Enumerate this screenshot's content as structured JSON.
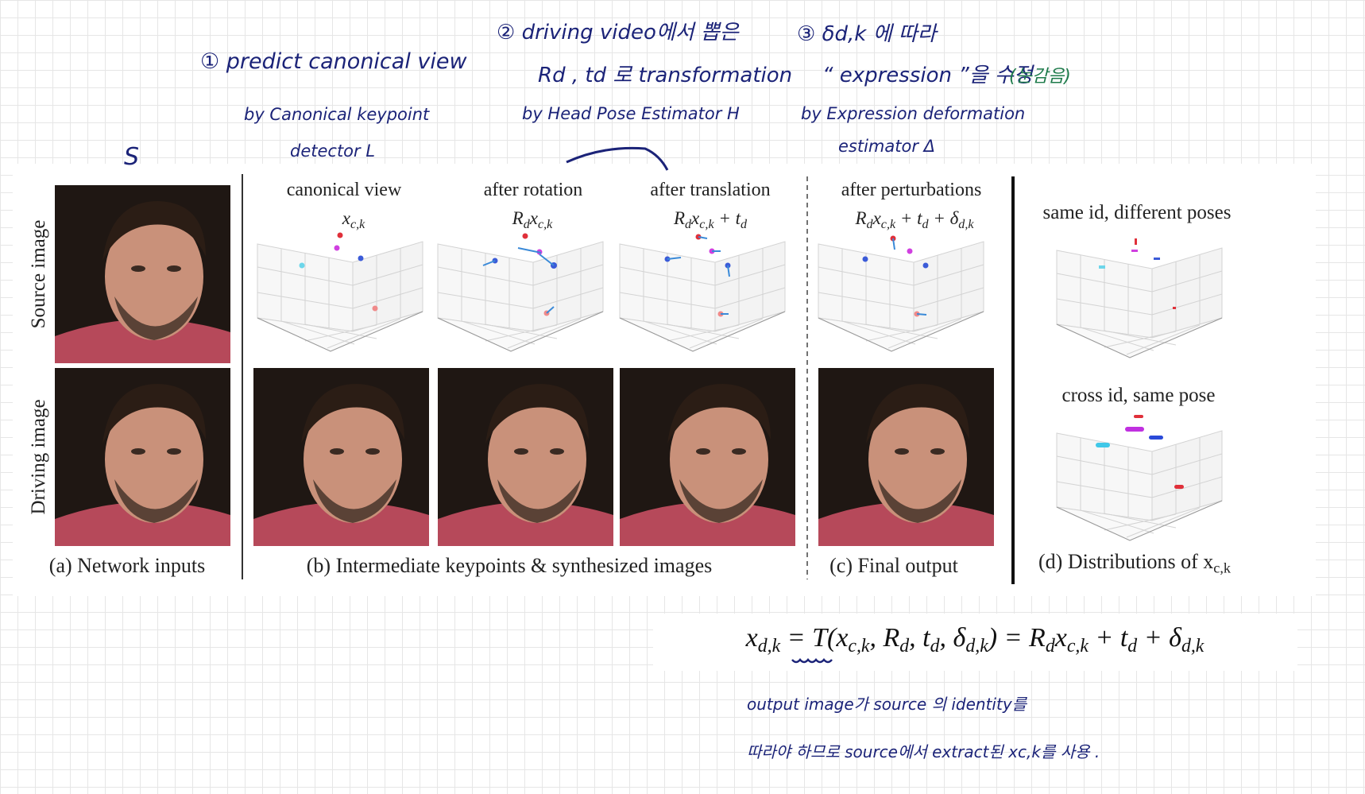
{
  "annotations": {
    "source_mark": "S",
    "step1": {
      "title": "① predict canonical view",
      "by": [
        "by Canonical keypoint",
        "detector L"
      ]
    },
    "step2": {
      "title": "② driving video에서 뽑은",
      "line2": "Rd , td 로 transformation",
      "by": [
        "by Head Pose Estimator H"
      ]
    },
    "step3": {
      "title": "③ δd,k 에 따라",
      "line2": "“ expression ”을 수정",
      "note": "(눈감음)",
      "by": [
        "by Expression deformation",
        "estimator Δ"
      ]
    },
    "bottom_note": [
      "output image가 source 의 identity를",
      "따라야 하므로 source에서 extract된 xc,k를 사용 ."
    ]
  },
  "figure": {
    "row_labels": [
      "Source image",
      "Driving image"
    ],
    "column_headers": [
      "canonical view",
      "after rotation",
      "after translation",
      "after perturbations"
    ],
    "column_formulas": [
      [
        {
          "text": "x",
          "sub": "c,k"
        }
      ],
      [
        {
          "text": "R",
          "sub": "d"
        },
        {
          "text": "x",
          "sub": "c,k"
        }
      ],
      [
        {
          "text": "R",
          "sub": "d"
        },
        {
          "text": "x",
          "sub": "c,k"
        },
        {
          "text": " + t",
          "sub": "d"
        }
      ],
      [
        {
          "text": "R",
          "sub": "d"
        },
        {
          "text": "x",
          "sub": "c,k"
        },
        {
          "text": " + t",
          "sub": "d"
        },
        {
          "text": " + δ",
          "sub": "d,k"
        }
      ]
    ],
    "distribution_titles": [
      "same id, different poses",
      "cross id, same pose"
    ],
    "captions": {
      "a": "(a) Network inputs",
      "b": "(b) Intermediate keypoints & synthesized images",
      "c": "(c) Final output",
      "d": [
        {
          "text": "(d) Distributions of x",
          "sub": "c,k"
        }
      ]
    }
  },
  "equation": [
    {
      "text": "x",
      "sub": "d,k"
    },
    {
      "text": " = T(x",
      "sub": "c,k"
    },
    {
      "text": ", R",
      "sub": "d"
    },
    {
      "text": ", t",
      "sub": "d"
    },
    {
      "text": ", δ",
      "sub": "d,k"
    },
    {
      "text": ") = R",
      "sub": "d"
    },
    {
      "text": "x",
      "sub": "c,k"
    },
    {
      "text": " + t",
      "sub": "d"
    },
    {
      "text": " + δ",
      "sub": "d,k"
    }
  ]
}
